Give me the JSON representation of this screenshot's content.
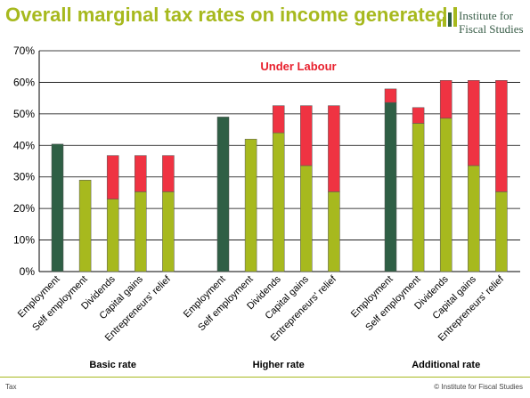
{
  "header": {
    "title": "Overall marginal tax rates on income generated",
    "logo_line1": "Institute for",
    "logo_line2": "Fiscal Studies"
  },
  "footer": {
    "left": "Tax",
    "right": "© Institute for Fiscal Studies"
  },
  "colors": {
    "title": "#a7b91e",
    "employment": "#2f5f45",
    "base": "#a7b91e",
    "extra": "#ef3342",
    "annotation": "#e8212e"
  },
  "chart_data": {
    "type": "bar",
    "stacked": true,
    "annotation": "Under Labour",
    "yticks": [
      "0%",
      "10%",
      "20%",
      "30%",
      "40%",
      "50%",
      "60%",
      "70%"
    ],
    "ylim": [
      0,
      70
    ],
    "grid": true,
    "groups": [
      {
        "label": "Basic rate",
        "bars": [
          {
            "category": "Employment",
            "base": 40.4,
            "extra": 0
          },
          {
            "category": "Self employment",
            "base": 29.0,
            "extra": 0
          },
          {
            "category": "Dividends",
            "base": 23.0,
            "extra": 13.8
          },
          {
            "category": "Capital gains",
            "base": 25.3,
            "extra": 11.5
          },
          {
            "category": "Entrepreneurs' relief",
            "base": 25.3,
            "extra": 11.5
          }
        ]
      },
      {
        "label": "Higher rate",
        "bars": [
          {
            "category": "Employment",
            "base": 49.0,
            "extra": 0
          },
          {
            "category": "Self employment",
            "base": 42.0,
            "extra": 0
          },
          {
            "category": "Dividends",
            "base": 44.0,
            "extra": 8.6
          },
          {
            "category": "Capital gains",
            "base": 33.6,
            "extra": 19.0
          },
          {
            "category": "Entrepreneurs' relief",
            "base": 25.3,
            "extra": 27.3
          }
        ]
      },
      {
        "label": "Additional rate",
        "bars": [
          {
            "category": "Employment",
            "base": 53.6,
            "extra": 4.3
          },
          {
            "category": "Self employment",
            "base": 47.0,
            "extra": 5.0
          },
          {
            "category": "Dividends",
            "base": 48.6,
            "extra": 12.0
          },
          {
            "category": "Capital gains",
            "base": 33.6,
            "extra": 27.0
          },
          {
            "category": "Entrepreneurs' relief",
            "base": 25.3,
            "extra": 35.3
          }
        ]
      }
    ]
  }
}
